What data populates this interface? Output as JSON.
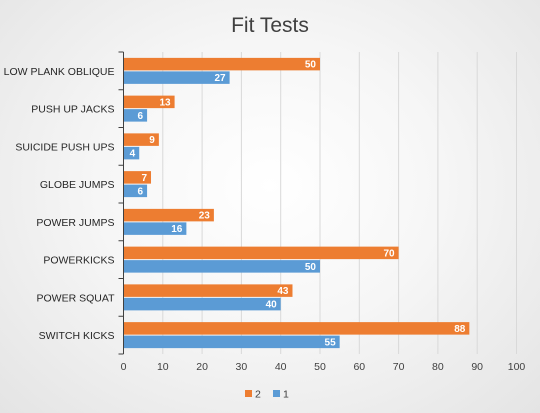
{
  "chart_data": {
    "type": "bar",
    "orientation": "horizontal",
    "title": "Fit Tests",
    "categories": [
      "LOW PLANK OBLIQUE",
      "PUSH UP JACKS",
      "SUICIDE PUSH UPS",
      "GLOBE JUMPS",
      "POWER JUMPS",
      "POWERKICKS",
      "POWER SQUAT",
      "SWITCH KICKS"
    ],
    "series": [
      {
        "name": "2",
        "color": "#ED7D31",
        "values": [
          50,
          13,
          9,
          7,
          23,
          70,
          43,
          88
        ]
      },
      {
        "name": "1",
        "color": "#5B9BD5",
        "values": [
          27,
          6,
          4,
          6,
          16,
          50,
          40,
          55
        ]
      }
    ],
    "xlim": [
      0,
      100
    ],
    "xticks": [
      0,
      10,
      20,
      30,
      40,
      50,
      60,
      70,
      80,
      90,
      100
    ],
    "grid": true,
    "data_labels": true,
    "legend": {
      "placement": "bottom",
      "entries": [
        "2",
        "1"
      ]
    },
    "colors": {
      "grid": "#d9d9d9",
      "axis": "#404040",
      "title": "#404040"
    }
  }
}
